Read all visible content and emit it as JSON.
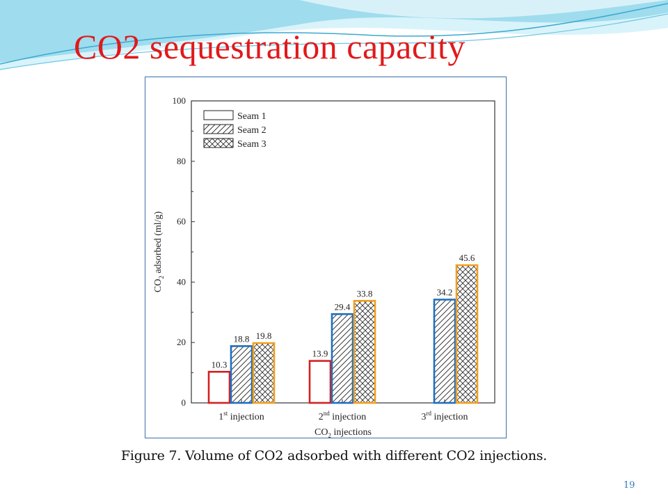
{
  "slide": {
    "title": "CO2 sequestration capacity",
    "caption": "Figure 7. Volume of CO2 adsorbed with different CO2 injections.",
    "page_number": "19"
  },
  "colors": {
    "title": "#e0191b",
    "seam1_outline": "#d42020",
    "seam2_outline": "#1f6fc0",
    "seam3_outline": "#f0a020",
    "frame": "#3a6fa8",
    "wave_light": "#bfe9f5",
    "wave_mid": "#7fd0e8",
    "wave_dark": "#3aa9cf"
  },
  "chart_data": {
    "type": "bar",
    "ylabel_parts": [
      "CO",
      "2",
      " adsorbed (ml/g)"
    ],
    "xlabel_parts": [
      "CO",
      "2",
      " injections"
    ],
    "ylim": [
      0,
      100
    ],
    "yticks": [
      0,
      20,
      40,
      60,
      80,
      100
    ],
    "categories": [
      {
        "num": "1",
        "sup": "st",
        "rest": " injection"
      },
      {
        "num": "2",
        "sup": "nd",
        "rest": " injection"
      },
      {
        "num": "3",
        "sup": "rd",
        "rest": " injection"
      }
    ],
    "series": [
      {
        "name": "Seam 1",
        "pattern": "none",
        "values": [
          10.3,
          13.9,
          null
        ],
        "labels": [
          "10.3",
          "13.9",
          ""
        ]
      },
      {
        "name": "Seam 2",
        "pattern": "diagonal",
        "values": [
          18.8,
          29.4,
          34.2
        ],
        "labels": [
          "18.8",
          "29.4",
          "34.2"
        ]
      },
      {
        "name": "Seam 3",
        "pattern": "crosshatch",
        "values": [
          19.8,
          33.8,
          45.6
        ],
        "labels": [
          "19.8",
          "33.8",
          "45.6"
        ]
      }
    ],
    "legend_position": "top-left",
    "grid": false
  }
}
